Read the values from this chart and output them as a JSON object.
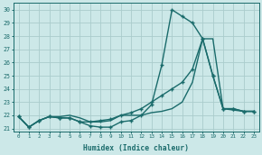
{
  "xlabel": "Humidex (Indice chaleur)",
  "xlim": [
    -0.5,
    23.5
  ],
  "ylim": [
    20.8,
    30.5
  ],
  "yticks": [
    21,
    22,
    23,
    24,
    25,
    26,
    27,
    28,
    29,
    30
  ],
  "xticks": [
    0,
    1,
    2,
    3,
    4,
    5,
    6,
    7,
    8,
    9,
    10,
    11,
    12,
    13,
    14,
    15,
    16,
    17,
    18,
    19,
    20,
    21,
    22,
    23
  ],
  "bg_color": "#cce8e8",
  "grid_color": "#aacccc",
  "line_color": "#1a6b6b",
  "lines": [
    {
      "x": [
        0,
        1,
        2,
        3,
        4,
        5,
        6,
        7,
        8,
        9,
        10,
        11,
        12,
        13,
        14,
        15,
        16,
        17,
        18,
        19,
        20,
        21,
        22,
        23
      ],
      "y": [
        21.9,
        21.1,
        21.6,
        21.9,
        21.9,
        22.0,
        21.8,
        21.5,
        21.5,
        21.6,
        22.0,
        22.0,
        22.0,
        22.2,
        22.3,
        22.5,
        23.0,
        24.5,
        27.8,
        27.8,
        22.5,
        22.4,
        22.3,
        22.3
      ],
      "marker": null,
      "markersize": 0,
      "linewidth": 1.0
    },
    {
      "x": [
        0,
        1,
        2,
        3,
        4,
        5,
        6,
        7,
        8,
        9,
        10,
        11,
        12,
        13,
        14,
        15,
        16,
        17,
        18,
        19,
        20,
        21,
        22,
        23
      ],
      "y": [
        21.9,
        21.1,
        21.6,
        21.9,
        21.8,
        21.8,
        21.5,
        21.5,
        21.6,
        21.7,
        22.0,
        22.2,
        22.5,
        23.0,
        23.5,
        24.0,
        24.5,
        25.5,
        27.8,
        25.0,
        22.5,
        22.5,
        22.3,
        22.3
      ],
      "marker": "+",
      "markersize": 3.5,
      "linewidth": 1.0
    },
    {
      "x": [
        0,
        1,
        2,
        3,
        4,
        5,
        6,
        7,
        8,
        9,
        10,
        11,
        12,
        13,
        14,
        15,
        16,
        17,
        18,
        19,
        20,
        21,
        22,
        23
      ],
      "y": [
        21.9,
        21.1,
        21.6,
        21.9,
        21.8,
        21.8,
        21.5,
        21.2,
        21.1,
        21.1,
        21.5,
        21.6,
        22.0,
        22.8,
        25.8,
        30.0,
        29.5,
        29.0,
        27.8,
        25.0,
        22.5,
        22.5,
        22.3,
        22.3
      ],
      "marker": "+",
      "markersize": 3.5,
      "linewidth": 1.0
    }
  ]
}
